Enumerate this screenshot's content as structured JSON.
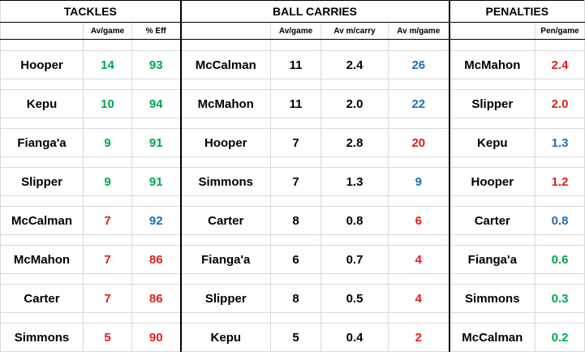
{
  "headers": {
    "tackles": "TACKLES",
    "ball_carries": "BALL CARRIES",
    "penalties": "PENALTIES"
  },
  "subheaders": {
    "tackles_av_game": "Av/game",
    "tackles_eff": "% Eff",
    "carries_av_game": "Av/game",
    "carries_av_m_carry": "Av m/carry",
    "carries_av_m_game": "Av m/game",
    "pen_game": "Pen/game"
  },
  "colors": {
    "green": "#00a651",
    "red": "#e41b1b",
    "blue": "#1f6fb5",
    "black": "#000000"
  },
  "tackles": [
    {
      "name": "Hooper",
      "av_game": "14",
      "av_color": "green",
      "eff": "93",
      "eff_color": "green"
    },
    {
      "name": "Kepu",
      "av_game": "10",
      "av_color": "green",
      "eff": "94",
      "eff_color": "green"
    },
    {
      "name": "Fianga'a",
      "av_game": "9",
      "av_color": "green",
      "eff": "91",
      "eff_color": "green"
    },
    {
      "name": "Slipper",
      "av_game": "9",
      "av_color": "green",
      "eff": "91",
      "eff_color": "green"
    },
    {
      "name": "McCalman",
      "av_game": "7",
      "av_color": "red",
      "eff": "92",
      "eff_color": "blue"
    },
    {
      "name": "McMahon",
      "av_game": "7",
      "av_color": "red",
      "eff": "86",
      "eff_color": "red"
    },
    {
      "name": "Carter",
      "av_game": "7",
      "av_color": "red",
      "eff": "86",
      "eff_color": "red"
    },
    {
      "name": "Simmons",
      "av_game": "5",
      "av_color": "red",
      "eff": "90",
      "eff_color": "red"
    }
  ],
  "carries": [
    {
      "name": "McCalman",
      "av_game": "11",
      "av_m_carry": "2.4",
      "av_m_game": "26",
      "mg_color": "blue"
    },
    {
      "name": "McMahon",
      "av_game": "11",
      "av_m_carry": "2.0",
      "av_m_game": "22",
      "mg_color": "blue"
    },
    {
      "name": "Hooper",
      "av_game": "7",
      "av_m_carry": "2.8",
      "av_m_game": "20",
      "mg_color": "red"
    },
    {
      "name": "Simmons",
      "av_game": "7",
      "av_m_carry": "1.3",
      "av_m_game": "9",
      "mg_color": "blue"
    },
    {
      "name": "Carter",
      "av_game": "8",
      "av_m_carry": "0.8",
      "av_m_game": "6",
      "mg_color": "red"
    },
    {
      "name": "Fianga'a",
      "av_game": "6",
      "av_m_carry": "0.7",
      "av_m_game": "4",
      "mg_color": "red"
    },
    {
      "name": "Slipper",
      "av_game": "8",
      "av_m_carry": "0.5",
      "av_m_game": "4",
      "mg_color": "red"
    },
    {
      "name": "Kepu",
      "av_game": "5",
      "av_m_carry": "0.4",
      "av_m_game": "2",
      "mg_color": "red"
    }
  ],
  "penalties": [
    {
      "name": "McMahon",
      "pen_game": "2.4",
      "color": "red"
    },
    {
      "name": "Slipper",
      "pen_game": "2.0",
      "color": "red"
    },
    {
      "name": "Kepu",
      "pen_game": "1.3",
      "color": "blue"
    },
    {
      "name": "Hooper",
      "pen_game": "1.2",
      "color": "red"
    },
    {
      "name": "Carter",
      "pen_game": "0.8",
      "color": "blue"
    },
    {
      "name": "Fianga'a",
      "pen_game": "0.6",
      "color": "green"
    },
    {
      "name": "Simmons",
      "pen_game": "0.3",
      "color": "green"
    },
    {
      "name": "McCalman",
      "pen_game": "0.2",
      "color": "green"
    }
  ]
}
